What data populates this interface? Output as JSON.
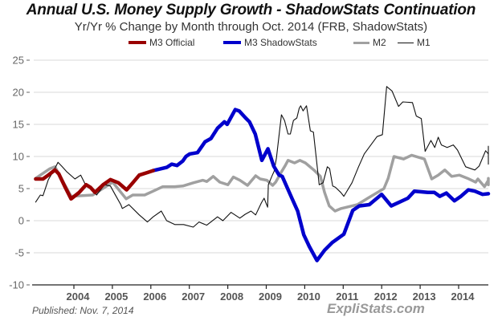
{
  "chart_data": {
    "type": "line",
    "title": "Annual U.S. Money Supply Growth - ShadowStats Continuation",
    "subtitle": "Yr/Yr % Change by Month through Oct. 2014  (FRB, ShadowStats)",
    "xlabel": "",
    "ylabel": "",
    "ylim": [
      -10,
      25
    ],
    "yticks": [
      25,
      20,
      15,
      10,
      5,
      0,
      -5,
      -10
    ],
    "xlim": [
      2002.95,
      2014.75
    ],
    "xticks": [
      2004,
      2005,
      2006,
      2007,
      2008,
      2009,
      2010,
      2011,
      2012,
      2013,
      2014
    ],
    "grid": true,
    "legend_position": "top-center",
    "series": [
      {
        "name": "M3 Official",
        "color": "#990000",
        "points": [
          [
            2003.0,
            6.5
          ],
          [
            2003.19,
            6.5
          ],
          [
            2003.33,
            7.1
          ],
          [
            2003.5,
            7.9
          ],
          [
            2003.6,
            7.3
          ],
          [
            2003.75,
            5.4
          ],
          [
            2003.92,
            3.4
          ],
          [
            2004.13,
            4.4
          ],
          [
            2004.31,
            5.6
          ],
          [
            2004.42,
            5.2
          ],
          [
            2004.54,
            4.4
          ],
          [
            2004.75,
            5.6
          ],
          [
            2004.94,
            6.4
          ],
          [
            2005.15,
            5.9
          ],
          [
            2005.36,
            4.8
          ],
          [
            2005.52,
            5.9
          ],
          [
            2005.69,
            7.1
          ],
          [
            2005.9,
            7.5
          ],
          [
            2006.05,
            7.8
          ]
        ]
      },
      {
        "name": "M3 ShadowStats",
        "color": "#0000cc",
        "points": [
          [
            2006.05,
            7.8
          ],
          [
            2006.4,
            8.3
          ],
          [
            2006.53,
            8.8
          ],
          [
            2006.67,
            8.6
          ],
          [
            2006.82,
            9.3
          ],
          [
            2006.9,
            10.0
          ],
          [
            2007.0,
            10.4
          ],
          [
            2007.2,
            10.6
          ],
          [
            2007.4,
            12.3
          ],
          [
            2007.55,
            12.8
          ],
          [
            2007.72,
            14.4
          ],
          [
            2007.9,
            15.4
          ],
          [
            2007.97,
            15.0
          ],
          [
            2008.18,
            17.3
          ],
          [
            2008.28,
            17.1
          ],
          [
            2008.45,
            16.0
          ],
          [
            2008.55,
            15.4
          ],
          [
            2008.7,
            13.5
          ],
          [
            2008.87,
            9.4
          ],
          [
            2009.03,
            11.2
          ],
          [
            2009.18,
            8.5
          ],
          [
            2009.32,
            7.1
          ],
          [
            2009.4,
            6.9
          ],
          [
            2009.65,
            3.5
          ],
          [
            2009.8,
            1.5
          ],
          [
            2009.96,
            -2.2
          ],
          [
            2010.1,
            -4.0
          ],
          [
            2010.3,
            -6.2
          ],
          [
            2010.5,
            -4.6
          ],
          [
            2010.7,
            -3.4
          ],
          [
            2011.0,
            -2.1
          ],
          [
            2011.23,
            1.6
          ],
          [
            2011.4,
            2.3
          ],
          [
            2011.66,
            2.5
          ],
          [
            2011.98,
            4.1
          ],
          [
            2012.23,
            2.3
          ],
          [
            2012.66,
            3.5
          ],
          [
            2012.83,
            4.6
          ],
          [
            2013.18,
            4.4
          ],
          [
            2013.35,
            4.4
          ],
          [
            2013.49,
            3.8
          ],
          [
            2013.66,
            4.3
          ],
          [
            2013.87,
            3.1
          ],
          [
            2014.04,
            3.8
          ],
          [
            2014.23,
            4.8
          ],
          [
            2014.4,
            4.6
          ],
          [
            2014.6,
            4.1
          ],
          [
            2014.75,
            4.2
          ]
        ]
      },
      {
        "name": "M2",
        "color": "#a0a0a0",
        "points": [
          [
            2003.0,
            6.6
          ],
          [
            2003.37,
            8.1
          ],
          [
            2003.5,
            8.4
          ],
          [
            2003.92,
            3.8
          ],
          [
            2004.48,
            4.0
          ],
          [
            2005.0,
            6.0
          ],
          [
            2005.35,
            3.4
          ],
          [
            2005.52,
            4.0
          ],
          [
            2005.83,
            4.0
          ],
          [
            2006.05,
            4.6
          ],
          [
            2006.3,
            5.3
          ],
          [
            2006.61,
            5.3
          ],
          [
            2006.82,
            5.4
          ],
          [
            2007.09,
            5.9
          ],
          [
            2007.34,
            6.3
          ],
          [
            2007.44,
            6.1
          ],
          [
            2007.61,
            6.9
          ],
          [
            2007.78,
            6.0
          ],
          [
            2007.99,
            5.6
          ],
          [
            2008.13,
            6.8
          ],
          [
            2008.3,
            6.3
          ],
          [
            2008.5,
            5.5
          ],
          [
            2008.71,
            7.0
          ],
          [
            2008.83,
            6.5
          ],
          [
            2009.0,
            6.3
          ],
          [
            2009.15,
            5.5
          ],
          [
            2009.23,
            6.0
          ],
          [
            2009.38,
            7.6
          ],
          [
            2009.48,
            8.6
          ],
          [
            2009.55,
            9.4
          ],
          [
            2009.72,
            9.0
          ],
          [
            2009.86,
            9.4
          ],
          [
            2010.0,
            9.0
          ],
          [
            2010.22,
            7.9
          ],
          [
            2010.39,
            6.9
          ],
          [
            2010.5,
            4.4
          ],
          [
            2010.62,
            2.3
          ],
          [
            2010.77,
            1.5
          ],
          [
            2010.93,
            1.9
          ],
          [
            2011.35,
            2.5
          ],
          [
            2011.62,
            3.5
          ],
          [
            2012.04,
            5.0
          ],
          [
            2012.15,
            6.6
          ],
          [
            2012.3,
            10.0
          ],
          [
            2012.55,
            9.6
          ],
          [
            2012.76,
            10.2
          ],
          [
            2013.09,
            9.6
          ],
          [
            2013.28,
            6.5
          ],
          [
            2013.45,
            7.1
          ],
          [
            2013.62,
            7.9
          ],
          [
            2013.8,
            6.9
          ],
          [
            2014.0,
            7.1
          ],
          [
            2014.21,
            6.6
          ],
          [
            2014.42,
            6.0
          ],
          [
            2014.48,
            6.5
          ],
          [
            2014.65,
            5.3
          ],
          [
            2014.8,
            6.3
          ],
          [
            2015.0,
            6.5
          ],
          [
            2015.2,
            6.6
          ],
          [
            2015.4,
            5.6
          ]
        ]
      },
      {
        "name": "M1",
        "color": "#111111",
        "points": [
          [
            2003.0,
            2.9
          ],
          [
            2003.12,
            4.0
          ],
          [
            2003.19,
            3.9
          ],
          [
            2003.33,
            6.4
          ],
          [
            2003.48,
            7.9
          ],
          [
            2003.58,
            9.1
          ],
          [
            2003.69,
            8.4
          ],
          [
            2003.81,
            7.6
          ],
          [
            2004.02,
            6.5
          ],
          [
            2004.17,
            7.1
          ],
          [
            2004.31,
            5.4
          ],
          [
            2004.42,
            5.4
          ],
          [
            2004.58,
            4.0
          ],
          [
            2004.79,
            5.6
          ],
          [
            2004.94,
            5.4
          ],
          [
            2005.06,
            4.1
          ],
          [
            2005.21,
            2.5
          ],
          [
            2005.25,
            1.9
          ],
          [
            2005.42,
            2.5
          ],
          [
            2005.69,
            0.9
          ],
          [
            2005.9,
            -0.2
          ],
          [
            2006.05,
            0.6
          ],
          [
            2006.26,
            1.5
          ],
          [
            2006.4,
            0.0
          ],
          [
            2006.61,
            -0.6
          ],
          [
            2006.84,
            -0.6
          ],
          [
            2007.09,
            -1.0
          ],
          [
            2007.24,
            -0.2
          ],
          [
            2007.44,
            -0.7
          ],
          [
            2007.72,
            0.6
          ],
          [
            2007.86,
            0.0
          ],
          [
            2008.07,
            1.3
          ],
          [
            2008.3,
            0.4
          ],
          [
            2008.44,
            1.0
          ],
          [
            2008.59,
            1.5
          ],
          [
            2008.71,
            0.9
          ],
          [
            2008.86,
            2.8
          ],
          [
            2008.93,
            3.5
          ],
          [
            2009.02,
            2.1
          ],
          [
            2009.04,
            5.6
          ],
          [
            2009.13,
            6.9
          ],
          [
            2009.19,
            7.7
          ],
          [
            2009.25,
            9.8
          ],
          [
            2009.38,
            16.5
          ],
          [
            2009.46,
            15.6
          ],
          [
            2009.55,
            13.5
          ],
          [
            2009.61,
            13.5
          ],
          [
            2009.69,
            15.6
          ],
          [
            2009.78,
            16.0
          ],
          [
            2009.84,
            17.5
          ],
          [
            2009.88,
            17.9
          ],
          [
            2009.94,
            17.1
          ],
          [
            2010.03,
            17.9
          ],
          [
            2010.13,
            14.0
          ],
          [
            2010.21,
            13.8
          ],
          [
            2010.36,
            5.6
          ],
          [
            2010.46,
            5.9
          ],
          [
            2010.57,
            8.4
          ],
          [
            2010.63,
            8.1
          ],
          [
            2010.71,
            5.4
          ],
          [
            2010.78,
            5.2
          ],
          [
            2010.92,
            4.4
          ],
          [
            2011.0,
            3.8
          ],
          [
            2011.21,
            5.9
          ],
          [
            2011.38,
            8.4
          ],
          [
            2011.53,
            10.4
          ],
          [
            2011.86,
            13.1
          ],
          [
            2012.0,
            13.4
          ],
          [
            2012.11,
            20.9
          ],
          [
            2012.25,
            20.2
          ],
          [
            2012.42,
            17.8
          ],
          [
            2012.53,
            18.5
          ],
          [
            2012.78,
            18.4
          ],
          [
            2012.88,
            16.3
          ],
          [
            2013.01,
            15.9
          ],
          [
            2013.11,
            10.8
          ],
          [
            2013.26,
            12.5
          ],
          [
            2013.36,
            11.4
          ],
          [
            2013.45,
            13.0
          ],
          [
            2013.53,
            11.8
          ],
          [
            2013.68,
            11.4
          ],
          [
            2013.84,
            11.8
          ],
          [
            2013.95,
            11.0
          ],
          [
            2014.16,
            8.4
          ],
          [
            2014.3,
            8.1
          ],
          [
            2014.4,
            7.9
          ],
          [
            2014.51,
            8.5
          ],
          [
            2014.68,
            10.9
          ],
          [
            2014.82,
            10.4
          ],
          [
            2014.97,
            11.6
          ],
          [
            2015.03,
            11.4
          ],
          [
            2015.09,
            10.0
          ],
          [
            2015.2,
            10.6
          ],
          [
            2015.28,
            8.8
          ]
        ]
      }
    ]
  },
  "footer": {
    "published": "Published: Nov. 7, 2014",
    "brand": "ExpliStats.com"
  }
}
